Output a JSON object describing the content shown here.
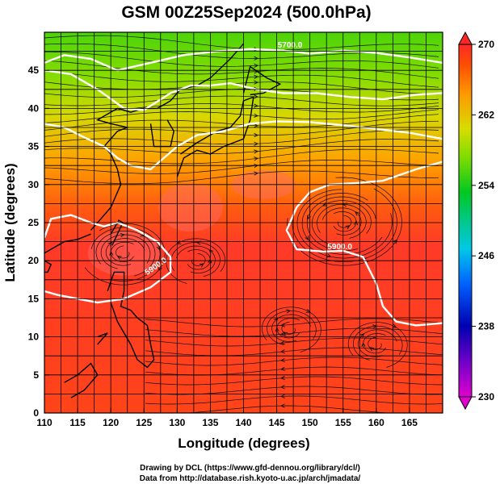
{
  "chart_data": {
    "type": "heatmap",
    "title": "GSM 00Z25Sep2024 (500.0hPa)",
    "xlabel": "Longitude (degrees)",
    "ylabel": "Latitude (degrees)",
    "xlim": [
      110,
      170
    ],
    "ylim": [
      0,
      50
    ],
    "x_ticks": [
      110,
      115,
      120,
      125,
      130,
      135,
      140,
      145,
      150,
      155,
      160,
      165
    ],
    "y_ticks": [
      0,
      5,
      10,
      15,
      20,
      25,
      30,
      35,
      40,
      45
    ],
    "grid": true,
    "colorbar": {
      "min": 230,
      "max": 270,
      "ticks": [
        270,
        262,
        254,
        246,
        238,
        230
      ],
      "palette": [
        "#e000d0",
        "#7000c8",
        "#0000b0",
        "#0060ff",
        "#00c8e8",
        "#00c888",
        "#00c820",
        "#80dc00",
        "#d8dc00",
        "#ff9800",
        "#ff5000",
        "#ff2828"
      ]
    },
    "temperature_bands": [
      {
        "lat": 48,
        "value": 254
      },
      {
        "lat": 44,
        "value": 255
      },
      {
        "lat": 40,
        "value": 257
      },
      {
        "lat": 36,
        "value": 262
      },
      {
        "lat": 32,
        "value": 265
      },
      {
        "lat": 27,
        "value": 267
      },
      {
        "lat": 20,
        "value": 267
      },
      {
        "lat": 10,
        "value": 266
      },
      {
        "lat": 2,
        "value": 266
      }
    ],
    "contour_labels": [
      "5700.0",
      "5900.0",
      "5900.0"
    ],
    "credits": [
      "Drawing by DCL (https://www.gfd-dennou.org/library/dcl/)",
      "Data from http://database.rish.kyoto-u.ac.jp/arch/jmadata/"
    ]
  }
}
